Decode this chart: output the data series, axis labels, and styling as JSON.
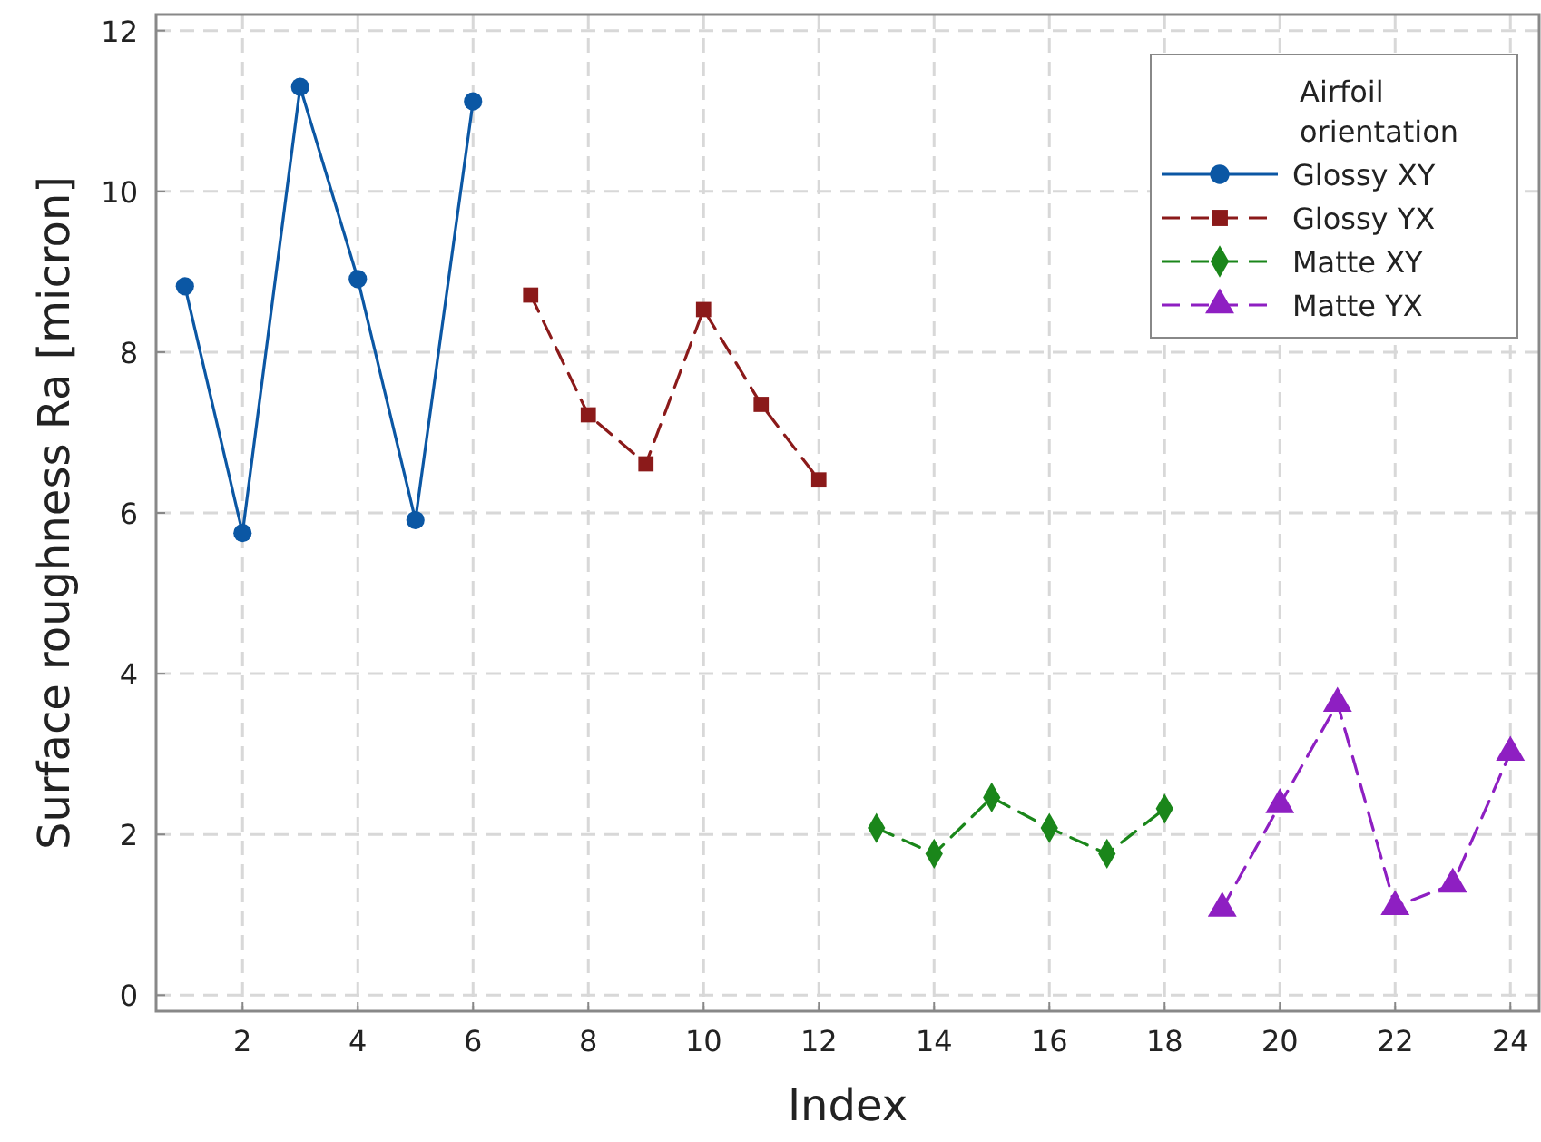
{
  "chart_data": {
    "type": "line",
    "xlabel": "Index",
    "ylabel": "Surface roughness Ra [micron]",
    "legend_title": "Airfoil orientation",
    "legend": "top right",
    "grid": true,
    "xlim": [
      0.5,
      24.5
    ],
    "xticks": [
      2,
      4,
      6,
      8,
      10,
      12,
      14,
      16,
      18,
      20,
      22,
      24
    ],
    "ylim": [
      -0.2,
      12.2
    ],
    "yticks": [
      0,
      2,
      4,
      6,
      8,
      10,
      12
    ],
    "series": [
      {
        "name": "Glossy XY",
        "color": "#0b57a4",
        "marker": "circle",
        "line_style": "solid",
        "x": [
          1,
          2,
          3,
          4,
          5,
          6
        ],
        "values": [
          8.82,
          5.75,
          11.3,
          8.91,
          5.91,
          11.12
        ]
      },
      {
        "name": "Glossy YX",
        "color": "#8b1a1a",
        "marker": "square",
        "line_style": "dashed",
        "x": [
          7,
          8,
          9,
          10,
          11,
          12
        ],
        "values": [
          8.71,
          7.22,
          6.61,
          8.53,
          7.35,
          6.41
        ]
      },
      {
        "name": "Matte XY",
        "color": "#1a861a",
        "marker": "diamond",
        "line_style": "dashed",
        "x": [
          13,
          14,
          15,
          16,
          17,
          18
        ],
        "values": [
          2.08,
          1.76,
          2.46,
          2.08,
          1.76,
          2.32
        ]
      },
      {
        "name": "Matte YX",
        "color": "#8e1fc2",
        "marker": "triangle",
        "line_style": "dashed",
        "x": [
          19,
          20,
          21,
          22,
          23,
          24
        ],
        "values": [
          1.08,
          2.37,
          3.63,
          1.1,
          1.38,
          3.02
        ]
      }
    ]
  }
}
